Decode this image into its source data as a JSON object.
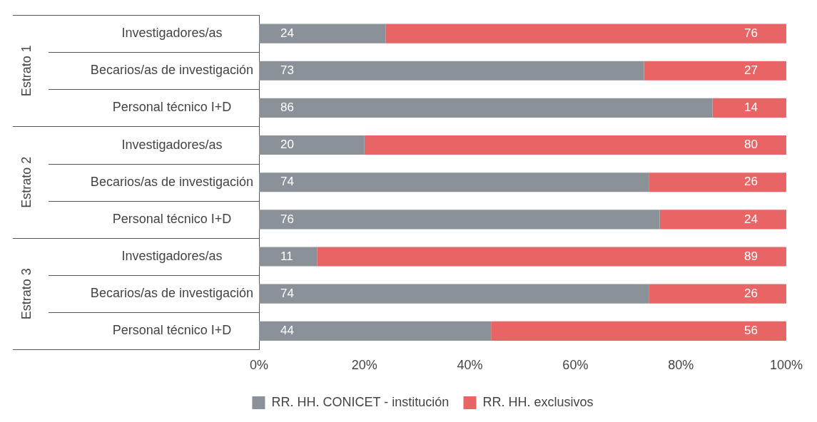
{
  "chart_data": {
    "type": "bar",
    "orientation": "horizontal",
    "stacked": true,
    "data_labels": true,
    "legend": "bottom",
    "categories": [
      "Investigadores/as",
      "Becarios/as de investigación",
      "Personal técnico I+D",
      "Investigadores/as",
      "Becarios/as de investigación",
      "Personal técnico I+D",
      "Investigadores/as",
      "Becarios/as de investigación",
      "Personal técnico I+D"
    ],
    "series": [
      {
        "name": "RR. HH. CONICET - institución",
        "color": "#8a9199",
        "values": [
          24,
          73,
          86,
          20,
          74,
          76,
          11,
          74,
          44
        ]
      },
      {
        "name": "RR. HH. exclusivos",
        "color": "#e96464",
        "values": [
          76,
          27,
          14,
          80,
          26,
          24,
          89,
          26,
          56
        ]
      }
    ],
    "xlim": [
      0,
      100
    ],
    "xticks": [
      {
        "value": 0,
        "label": "0%"
      },
      {
        "value": 20,
        "label": "20%"
      },
      {
        "value": 40,
        "label": "40%"
      },
      {
        "value": 60,
        "label": "60%"
      },
      {
        "value": 80,
        "label": "80%"
      },
      {
        "value": 100,
        "label": "100%"
      }
    ],
    "annotations": [
      "Estrato 1",
      "Estrato 2",
      "Estrato 3"
    ]
  }
}
